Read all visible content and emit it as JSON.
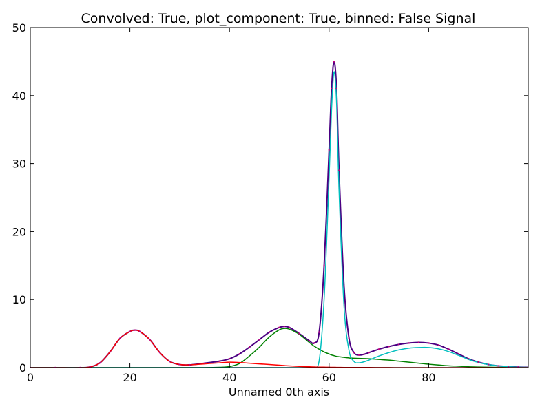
{
  "chart_data": {
    "type": "line",
    "title": "Convolved: True, plot_component: True, binned: False Signal",
    "xlabel": "Unnamed 0th axis",
    "ylabel": "",
    "xlim": [
      0,
      100
    ],
    "ylim": [
      0,
      50
    ],
    "x_ticks": [
      0,
      20,
      40,
      60,
      80
    ],
    "y_ticks": [
      0,
      10,
      20,
      30,
      40,
      50
    ],
    "grid": false,
    "legend": "none",
    "x": [
      0,
      5,
      10,
      12,
      14,
      16,
      18,
      20,
      21,
      22,
      24,
      26,
      28,
      30,
      32,
      35,
      38,
      40,
      42,
      44,
      46,
      48,
      50,
      51,
      52,
      54,
      56,
      57,
      58,
      59,
      60,
      60.5,
      61,
      61.5,
      62,
      63,
      64,
      65,
      66,
      67,
      68,
      70,
      72,
      74,
      76,
      78,
      80,
      82,
      84,
      86,
      88,
      90,
      92,
      94,
      96,
      98,
      100
    ],
    "series": [
      {
        "color": "#4b0082",
        "values": [
          0.0,
          0.0,
          0.0,
          0.1,
          0.7,
          2.3,
          4.3,
          5.3,
          5.5,
          5.3,
          4.1,
          2.2,
          0.9,
          0.45,
          0.4,
          0.65,
          0.95,
          1.3,
          2.0,
          3.0,
          4.1,
          5.2,
          5.9,
          6.05,
          5.9,
          5.0,
          3.95,
          3.6,
          5.2,
          15.0,
          32.0,
          41.0,
          45.0,
          41.0,
          29.0,
          12.0,
          4.3,
          2.2,
          1.85,
          1.95,
          2.2,
          2.7,
          3.1,
          3.4,
          3.6,
          3.7,
          3.6,
          3.3,
          2.7,
          2.0,
          1.3,
          0.8,
          0.45,
          0.25,
          0.15,
          0.08,
          0.05
        ]
      },
      {
        "color": "#00bfbf",
        "values": [
          0.0,
          0.0,
          0.0,
          0.0,
          0.0,
          0.0,
          0.0,
          0.0,
          0.0,
          0.0,
          0.0,
          0.0,
          0.0,
          0.0,
          0.0,
          0.0,
          0.0,
          0.0,
          0.0,
          0.0,
          0.0,
          0.0,
          0.0,
          0.0,
          0.0,
          0.0,
          0.0,
          0.05,
          1.0,
          10.0,
          28.0,
          38.0,
          43.5,
          39.0,
          26.0,
          9.0,
          2.5,
          0.9,
          0.7,
          0.85,
          1.1,
          1.7,
          2.2,
          2.6,
          2.85,
          2.95,
          2.95,
          2.75,
          2.35,
          1.8,
          1.2,
          0.75,
          0.45,
          0.25,
          0.12,
          0.06,
          0.03
        ]
      },
      {
        "color": "#008000",
        "values": [
          0.0,
          0.0,
          0.0,
          0.0,
          0.0,
          0.0,
          0.0,
          0.0,
          0.0,
          0.0,
          0.0,
          0.0,
          0.0,
          0.0,
          0.0,
          0.0,
          0.05,
          0.15,
          0.6,
          1.7,
          3.0,
          4.5,
          5.55,
          5.75,
          5.65,
          4.9,
          3.7,
          3.15,
          2.7,
          2.3,
          2.0,
          1.85,
          1.75,
          1.65,
          1.6,
          1.5,
          1.42,
          1.38,
          1.35,
          1.33,
          1.3,
          1.2,
          1.1,
          0.95,
          0.8,
          0.65,
          0.5,
          0.38,
          0.27,
          0.2,
          0.13,
          0.09,
          0.06,
          0.04,
          0.02,
          0.01,
          0.0
        ]
      },
      {
        "color": "#ff0000",
        "values": [
          0.0,
          0.0,
          0.0,
          0.1,
          0.7,
          2.3,
          4.3,
          5.3,
          5.5,
          5.3,
          4.1,
          2.2,
          0.9,
          0.45,
          0.4,
          0.55,
          0.7,
          0.8,
          0.75,
          0.65,
          0.55,
          0.45,
          0.35,
          0.3,
          0.25,
          0.18,
          0.12,
          0.1,
          0.08,
          0.07,
          0.06,
          0.05,
          0.05,
          0.04,
          0.04,
          0.03,
          0.03,
          0.02,
          0.02,
          0.02,
          0.02,
          0.01,
          0.01,
          0.0,
          0.0,
          0.0,
          0.0,
          0.0,
          0.0,
          0.0,
          0.0,
          0.0,
          0.0,
          0.0,
          0.0,
          0.0,
          0.0
        ]
      }
    ]
  }
}
